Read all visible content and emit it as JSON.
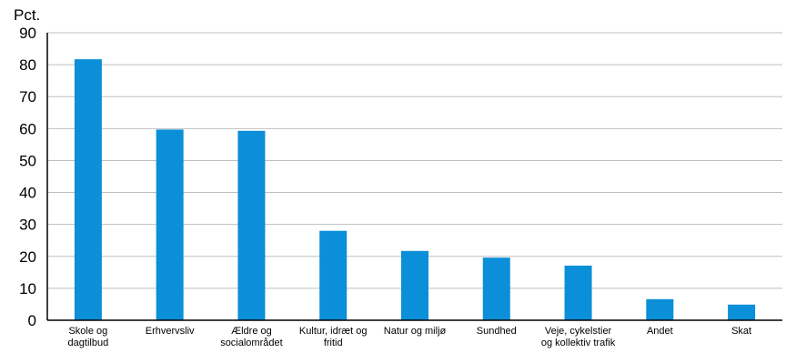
{
  "chart_data": {
    "type": "bar",
    "ylabel": "Pct.",
    "ylim": [
      0,
      90
    ],
    "yticks": [
      0,
      10,
      20,
      30,
      40,
      50,
      60,
      70,
      80,
      90
    ],
    "grid": true,
    "categories": [
      [
        "Skole og",
        "dagtilbud"
      ],
      [
        "Erhvervsliv"
      ],
      [
        "Ældre og",
        "socialområdet"
      ],
      [
        "Kultur, idræt og",
        "fritid"
      ],
      [
        "Natur og miljø"
      ],
      [
        "Sundhed"
      ],
      [
        "Veje, cykelstier",
        "og kollektiv trafik"
      ],
      [
        "Andet"
      ],
      [
        "Skat"
      ]
    ],
    "values": [
      81.7,
      59.7,
      59.3,
      28.0,
      21.7,
      19.6,
      17.1,
      6.6,
      4.9
    ],
    "bar_color": "#0a8fd8"
  }
}
